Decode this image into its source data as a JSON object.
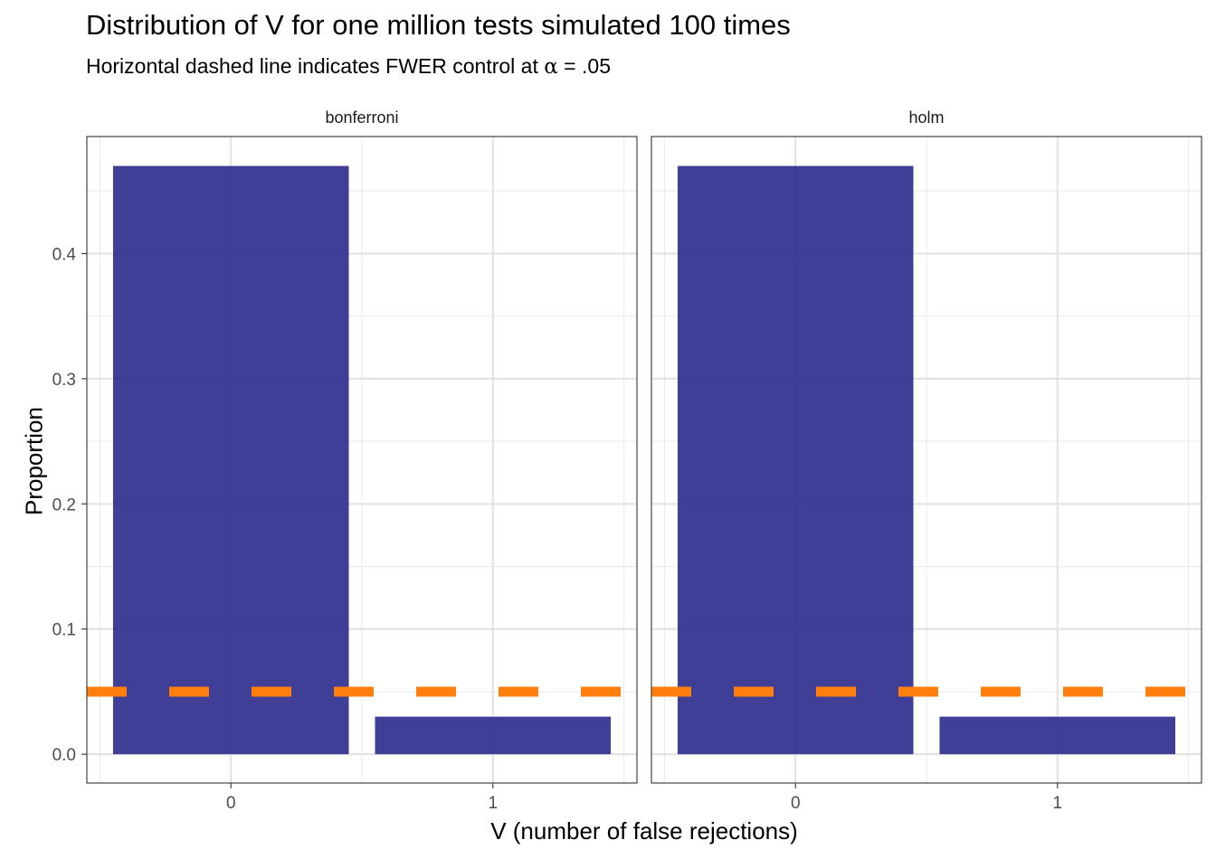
{
  "chart_data": {
    "type": "bar",
    "title": "Distribution of V for one million tests simulated 100 times",
    "subtitle": {
      "before": "Horizontal dashed line indicates FWER control at ",
      "symbol": "α",
      "after": " = .05"
    },
    "xlabel": "V (number of false rejections)",
    "ylabel": "Proportion",
    "ylim": [
      -0.023,
      0.4935
    ],
    "xlim": [
      -0.55,
      1.55
    ],
    "yticks": [
      0.0,
      0.1,
      0.2,
      0.3,
      0.4
    ],
    "ytick_labels": [
      "0.0",
      "0.1",
      "0.2",
      "0.3",
      "0.4"
    ],
    "categories": [
      "0",
      "1"
    ],
    "grid": true,
    "reference_line": {
      "y": 0.05,
      "style": "dashed",
      "color": "#ff7f0e"
    },
    "bar_color": "#2a2a8c",
    "facets": [
      {
        "label": "bonferroni",
        "values": [
          0.47,
          0.03
        ]
      },
      {
        "label": "holm",
        "values": [
          0.47,
          0.03
        ]
      }
    ]
  }
}
